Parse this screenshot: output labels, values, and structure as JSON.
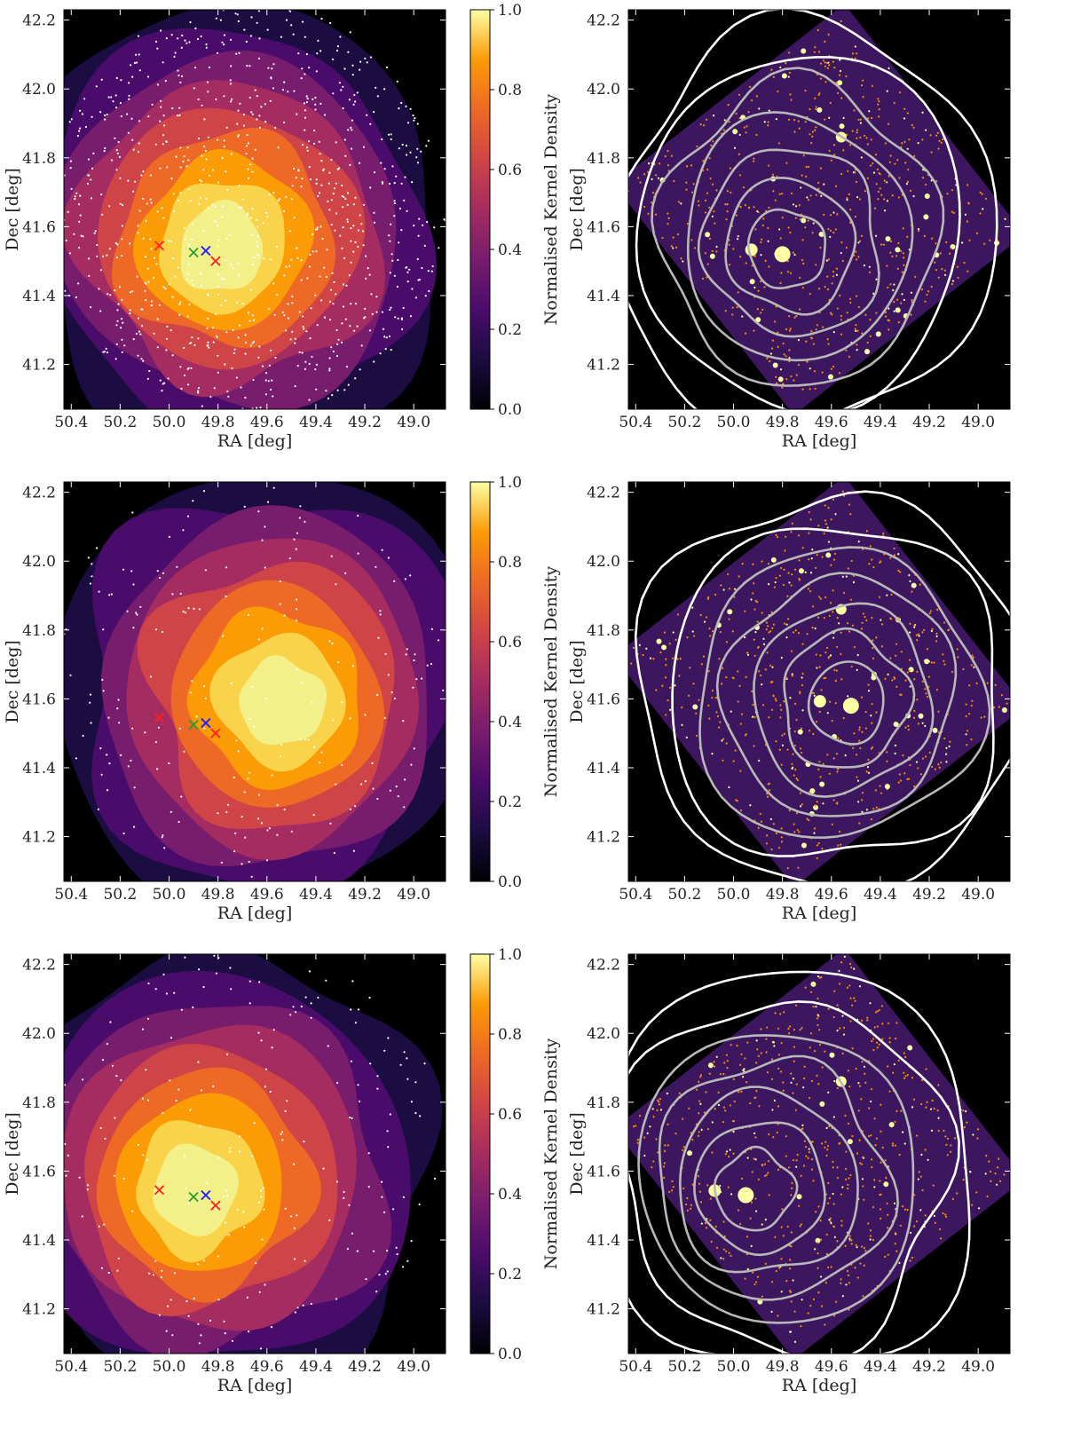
{
  "chart_data": [
    {
      "type": "heatmap",
      "panel": "row1-left",
      "xlabel": "RA [deg]",
      "ylabel": "Dec [deg]",
      "xlim": [
        50.43,
        48.87
      ],
      "ylim": [
        41.07,
        42.23
      ],
      "xticks": [
        "50.4",
        "50.2",
        "50.0",
        "49.8",
        "49.6",
        "49.4",
        "49.2",
        "49.0"
      ],
      "yticks": [
        "41.2",
        "41.4",
        "41.6",
        "41.8",
        "42.0",
        "42.2"
      ],
      "colorbar": {
        "label": "Normalised Kernel Density",
        "range": [
          0.0,
          1.0
        ],
        "ticks": [
          "0.0",
          "0.2",
          "0.4",
          "0.6",
          "0.8",
          "1.0"
        ]
      },
      "peak": {
        "ra": 49.8,
        "dec": 41.52
      },
      "markers": [
        {
          "color": "#ff2020",
          "ra": 50.04,
          "dec": 41.545
        },
        {
          "color": "#ff2020",
          "ra": 49.81,
          "dec": 41.5
        },
        {
          "color": "#2a9d2a",
          "ra": 49.9,
          "dec": 41.525
        },
        {
          "color": "#2020ff",
          "ra": 49.85,
          "dec": 41.53
        }
      ]
    },
    {
      "type": "heatmap",
      "panel": "row1-right",
      "xlabel": "RA [deg]",
      "ylabel": "Dec [deg]",
      "xlim": [
        50.43,
        48.87
      ],
      "ylim": [
        41.07,
        42.23
      ],
      "xticks": [
        "50.4",
        "50.2",
        "50.0",
        "49.8",
        "49.6",
        "49.4",
        "49.2",
        "49.0"
      ],
      "yticks": [
        "41.2",
        "41.4",
        "41.6",
        "41.8",
        "42.0",
        "42.2"
      ],
      "contours_peak": {
        "ra": 49.8,
        "dec": 41.52
      }
    },
    {
      "type": "heatmap",
      "panel": "row2-left",
      "xlabel": "RA [deg]",
      "ylabel": "Dec [deg]",
      "xlim": [
        50.43,
        48.87
      ],
      "ylim": [
        41.07,
        42.23
      ],
      "xticks": [
        "50.4",
        "50.2",
        "50.0",
        "49.8",
        "49.6",
        "49.4",
        "49.2",
        "49.0"
      ],
      "yticks": [
        "41.2",
        "41.4",
        "41.6",
        "41.8",
        "42.0",
        "42.2"
      ],
      "colorbar": {
        "label": "Normalised Kernel Density",
        "range": [
          0.0,
          1.0
        ],
        "ticks": [
          "0.0",
          "0.2",
          "0.4",
          "0.6",
          "0.8",
          "1.0"
        ]
      },
      "peak": {
        "ra": 49.52,
        "dec": 41.58
      },
      "markers": [
        {
          "color": "#ff2020",
          "ra": 50.04,
          "dec": 41.545
        },
        {
          "color": "#ff2020",
          "ra": 49.81,
          "dec": 41.5
        },
        {
          "color": "#2a9d2a",
          "ra": 49.9,
          "dec": 41.525
        },
        {
          "color": "#2020ff",
          "ra": 49.85,
          "dec": 41.53
        }
      ]
    },
    {
      "type": "heatmap",
      "panel": "row2-right",
      "xlabel": "RA [deg]",
      "ylabel": "Dec [deg]",
      "xlim": [
        50.43,
        48.87
      ],
      "ylim": [
        41.07,
        42.23
      ],
      "xticks": [
        "50.4",
        "50.2",
        "50.0",
        "49.8",
        "49.6",
        "49.4",
        "49.2",
        "49.0"
      ],
      "yticks": [
        "41.2",
        "41.4",
        "41.6",
        "41.8",
        "42.0",
        "42.2"
      ],
      "contours_peak": {
        "ra": 49.52,
        "dec": 41.58
      }
    },
    {
      "type": "heatmap",
      "panel": "row3-left",
      "xlabel": "RA [deg]",
      "ylabel": "Dec [deg]",
      "xlim": [
        50.43,
        48.87
      ],
      "ylim": [
        41.07,
        42.23
      ],
      "xticks": [
        "50.4",
        "50.2",
        "50.0",
        "49.8",
        "49.6",
        "49.4",
        "49.2",
        "49.0"
      ],
      "yticks": [
        "41.2",
        "41.4",
        "41.6",
        "41.8",
        "42.0",
        "42.2"
      ],
      "colorbar": {
        "label": "Normalised Kernel Density",
        "range": [
          0.0,
          1.0
        ],
        "ticks": [
          "0.0",
          "0.2",
          "0.4",
          "0.6",
          "0.8",
          "1.0"
        ]
      },
      "peak": {
        "ra": 49.92,
        "dec": 41.53
      },
      "markers": [
        {
          "color": "#ff2020",
          "ra": 50.04,
          "dec": 41.545
        },
        {
          "color": "#ff2020",
          "ra": 49.81,
          "dec": 41.5
        },
        {
          "color": "#2a9d2a",
          "ra": 49.9,
          "dec": 41.525
        },
        {
          "color": "#2020ff",
          "ra": 49.85,
          "dec": 41.53
        }
      ]
    },
    {
      "type": "heatmap",
      "panel": "row3-right",
      "xlabel": "RA [deg]",
      "ylabel": "Dec [deg]",
      "xlim": [
        50.43,
        48.87
      ],
      "ylim": [
        41.07,
        42.23
      ],
      "xticks": [
        "50.4",
        "50.2",
        "50.0",
        "49.8",
        "49.6",
        "49.4",
        "49.2",
        "49.0"
      ],
      "yticks": [
        "41.2",
        "41.4",
        "41.6",
        "41.8",
        "42.0",
        "42.2"
      ],
      "contours_peak": {
        "ra": 49.95,
        "dec": 41.53
      }
    }
  ]
}
